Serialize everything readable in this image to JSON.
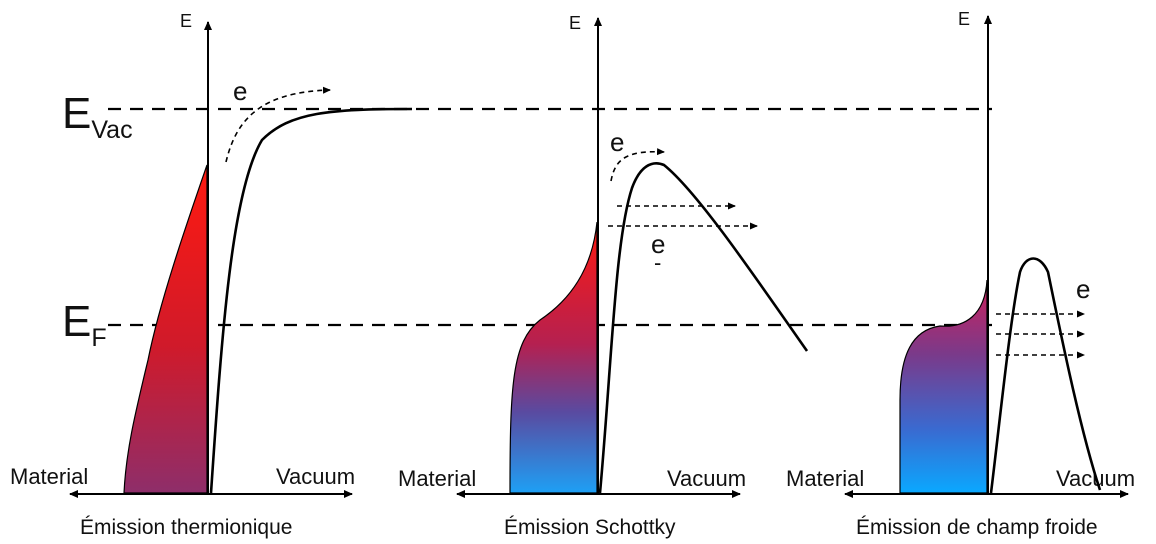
{
  "levels": {
    "vacuum": {
      "main": "E",
      "sub": "Vac"
    },
    "fermi": {
      "main": "E",
      "sub": "F"
    }
  },
  "panels": [
    {
      "axis_label": "E",
      "left_label": "Material",
      "right_label": "Vacuum",
      "caption": "Émission thermionique",
      "electron_labels": [
        "e"
      ]
    },
    {
      "axis_label": "E",
      "left_label": "Material",
      "right_label": "Vacuum",
      "caption": "Émission Schottky",
      "electron_labels": [
        "e",
        "e",
        "-"
      ]
    },
    {
      "axis_label": "E",
      "left_label": "Material",
      "right_label": "Vacuum",
      "caption": "Émission de champ froide",
      "electron_labels": [
        "e"
      ]
    }
  ],
  "colors": {
    "fill_top": "#ff1a10",
    "fill_mid": "#8e2e6a",
    "fill_bottom": "#1ea0f5",
    "line": "#000000"
  }
}
